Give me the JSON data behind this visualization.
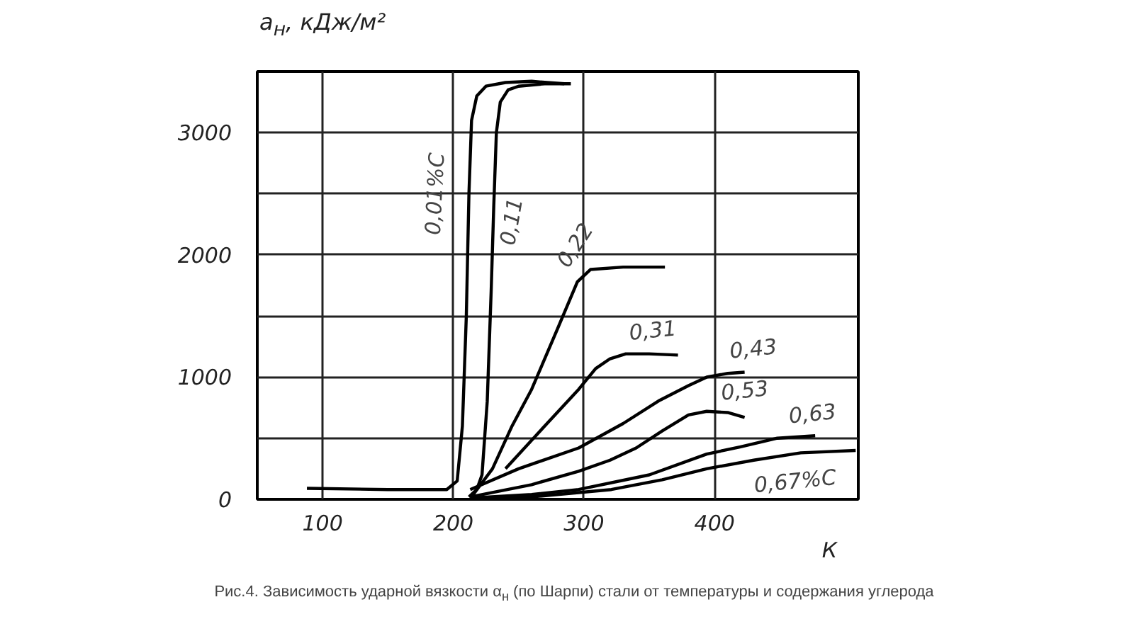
{
  "chart_data": {
    "type": "line",
    "xlabel": "К",
    "ylabel": "a$_{н}$, кДж/м²",
    "xlim": [
      50,
      510
    ],
    "ylim": [
      0,
      3500
    ],
    "xticks": [
      100,
      200,
      300,
      400
    ],
    "yticks": [
      0,
      {
        "value": 500,
        "label": null
      },
      1000,
      {
        "value": 1500,
        "label": null
      },
      2000,
      {
        "value": 2500,
        "label": null
      },
      3000
    ],
    "grid": true,
    "line_style": "solid",
    "marker": "none",
    "series": [
      {
        "color": "#000000",
        "x": [
          88,
          150,
          195,
          203,
          207,
          210,
          212,
          214,
          218,
          225,
          240,
          260,
          285
        ],
        "values": [
          90,
          80,
          80,
          150,
          600,
          1500,
          2500,
          3100,
          3300,
          3380,
          3410,
          3420,
          3400
        ]
      },
      {
        "color": "#000000",
        "x": [
          212,
          218,
          222,
          226,
          229,
          231,
          233,
          236,
          242,
          250,
          270,
          290
        ],
        "values": [
          20,
          80,
          200,
          800,
          1700,
          2400,
          3000,
          3250,
          3350,
          3380,
          3400,
          3400
        ]
      },
      {
        "color": "#000000",
        "x": [
          214,
          230,
          245,
          260,
          280,
          295,
          305,
          330,
          362
        ],
        "values": [
          20,
          250,
          600,
          900,
          1400,
          1780,
          1880,
          1900,
          1900
        ]
      },
      {
        "color": "#000000",
        "x": [
          240,
          270,
          296,
          309,
          320,
          332,
          350,
          372
        ],
        "values": [
          250,
          600,
          900,
          1070,
          1150,
          1190,
          1190,
          1180
        ]
      },
      {
        "color": "#000000",
        "x": [
          213,
          250,
          296,
          330,
          358,
          380,
          394,
          410,
          423
        ],
        "values": [
          80,
          250,
          420,
          620,
          810,
          930,
          1000,
          1030,
          1040
        ]
      },
      {
        "color": "#000000",
        "x": [
          213,
          260,
          296,
          320,
          340,
          360,
          380,
          394,
          410,
          423
        ],
        "values": [
          20,
          120,
          230,
          320,
          420,
          560,
          690,
          720,
          710,
          670
        ]
      },
      {
        "color": "#000000",
        "x": [
          213,
          260,
          296,
          350,
          394,
          420,
          448,
          477
        ],
        "values": [
          10,
          40,
          80,
          200,
          370,
          430,
          500,
          520
        ]
      },
      {
        "color": "#000000",
        "x": [
          213,
          260,
          321,
          360,
          394,
          430,
          466,
          508
        ],
        "values": [
          0,
          20,
          80,
          160,
          250,
          320,
          380,
          400
        ]
      }
    ],
    "annotations": [
      {
        "text": "0,01%C",
        "x": 212,
        "y": 2500
      },
      {
        "text": "0,11",
        "x": 231,
        "y": 2400
      },
      {
        "text": "0,22",
        "x": 295,
        "y": 1780
      },
      {
        "text": "0,31",
        "x": 332,
        "y": 1190
      },
      {
        "text": "0,43",
        "x": 423,
        "y": 1040
      },
      {
        "text": "0,53",
        "x": 410,
        "y": 710
      },
      {
        "text": "0,63",
        "x": 477,
        "y": 520
      },
      {
        "text": "0,67%C",
        "x": 466,
        "y": 380
      },
      "Рис.4. Зависимость ударной вязкости α$_{н}$ (по Шарпи) стали от температуры и содержания углерода"
    ]
  }
}
